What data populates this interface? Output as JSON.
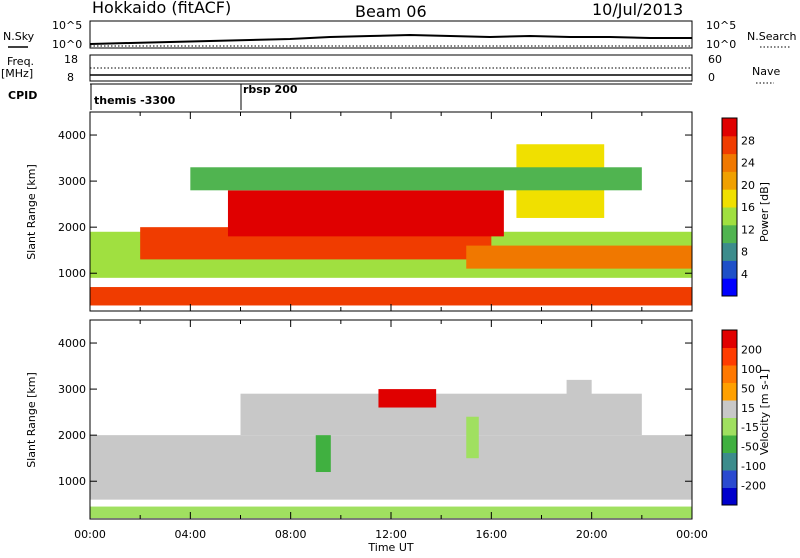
{
  "header": {
    "station": "Hokkaido (fitACF)",
    "beam": "Beam 06",
    "date": "10/Jul/2013"
  },
  "top_panels": {
    "nsky_label": "N.Sky",
    "nsky_ticks": [
      "10^5",
      "10^0"
    ],
    "nsearch_label": "N.Search",
    "nsearch_ticks": [
      "10^5",
      "10^0"
    ],
    "freq_label_1": "Freq.",
    "freq_label_2": "[MHz]",
    "freq_ticks": [
      "18",
      "8"
    ],
    "nave_label": "Nave",
    "nave_ticks": [
      "60",
      "0"
    ],
    "cpid_label": "CPID",
    "cpid_modes": [
      {
        "label": "themis -3300",
        "start_hour": 0
      },
      {
        "label": "rbsp 200",
        "start_hour": 6
      }
    ]
  },
  "x_axis": {
    "label": "Time UT",
    "ticks": [
      "00:00",
      "04:00",
      "08:00",
      "12:00",
      "16:00",
      "20:00",
      "00:00"
    ]
  },
  "chart_data": [
    {
      "type": "heatmap",
      "title": "",
      "ylabel": "Slant Range [km]",
      "xlabel": "Time UT",
      "x_range_hours": [
        0,
        24
      ],
      "ylim": [
        180,
        4500
      ],
      "y_ticks": [
        "1000",
        "2000",
        "3000",
        "4000"
      ],
      "colorbar": {
        "label": "Power [dB]",
        "ticks": [
          "4",
          "8",
          "12",
          "16",
          "20",
          "24",
          "28"
        ],
        "range": [
          0,
          30
        ],
        "colors": [
          "#0000ff",
          "#1e50c8",
          "#3c8c8c",
          "#50b450",
          "#a0e040",
          "#f0e000",
          "#f0a000",
          "#f07800",
          "#f03c00",
          "#e00000"
        ]
      },
      "bands": [
        {
          "start_hour": 0.0,
          "end_hour": 24.0,
          "range_min": 300,
          "range_max": 700,
          "value": 24
        },
        {
          "start_hour": 0.0,
          "end_hour": 24.0,
          "range_min": 900,
          "range_max": 1900,
          "value": 14
        },
        {
          "start_hour": 2.0,
          "end_hour": 16.0,
          "range_min": 1300,
          "range_max": 2000,
          "value": 26
        },
        {
          "start_hour": 5.5,
          "end_hour": 16.5,
          "range_min": 1800,
          "range_max": 2800,
          "value": 27
        },
        {
          "start_hour": 15.0,
          "end_hour": 24.0,
          "range_min": 1100,
          "range_max": 1600,
          "value": 22
        },
        {
          "start_hour": 17.0,
          "end_hour": 20.5,
          "range_min": 2200,
          "range_max": 3800,
          "value": 16
        },
        {
          "start_hour": 4.0,
          "end_hour": 22.0,
          "range_min": 2800,
          "range_max": 3300,
          "value": 10
        }
      ]
    },
    {
      "type": "heatmap",
      "title": "",
      "ylabel": "Slant Range [km]",
      "xlabel": "Time UT",
      "x_range_hours": [
        0,
        24
      ],
      "ylim": [
        180,
        4500
      ],
      "y_ticks": [
        "1000",
        "2000",
        "3000",
        "4000"
      ],
      "colorbar": {
        "label": "Velocity [m s-1]",
        "ticks": [
          "200",
          "100",
          "50",
          "15",
          "-15",
          "-50",
          "-100",
          "-200"
        ],
        "range": [
          -250,
          250
        ],
        "colors": [
          "#0000cc",
          "#2a4ad0",
          "#3c8c8c",
          "#40b040",
          "#a0e060",
          "#c8c8c8",
          "#ffa000",
          "#ff7800",
          "#ff3c00",
          "#e00000"
        ]
      },
      "bands": [
        {
          "start_hour": 0.0,
          "end_hour": 24.0,
          "range_min": 600,
          "range_max": 2000,
          "value": 0
        },
        {
          "start_hour": 6.0,
          "end_hour": 22.0,
          "range_min": 2000,
          "range_max": 2900,
          "value": 0
        },
        {
          "start_hour": 11.5,
          "end_hour": 13.8,
          "range_min": 2600,
          "range_max": 3000,
          "value": 200
        },
        {
          "start_hour": 15.0,
          "end_hour": 15.5,
          "range_min": 1500,
          "range_max": 2400,
          "value": -50
        },
        {
          "start_hour": 19.0,
          "end_hour": 20.0,
          "range_min": 2200,
          "range_max": 3200,
          "value": 40
        },
        {
          "start_hour": 9.0,
          "end_hour": 9.6,
          "range_min": 1200,
          "range_max": 2000,
          "value": -60
        },
        {
          "start_hour": 0.0,
          "end_hour": 24.0,
          "range_min": 200,
          "range_max": 450,
          "value": -40
        }
      ]
    }
  ]
}
